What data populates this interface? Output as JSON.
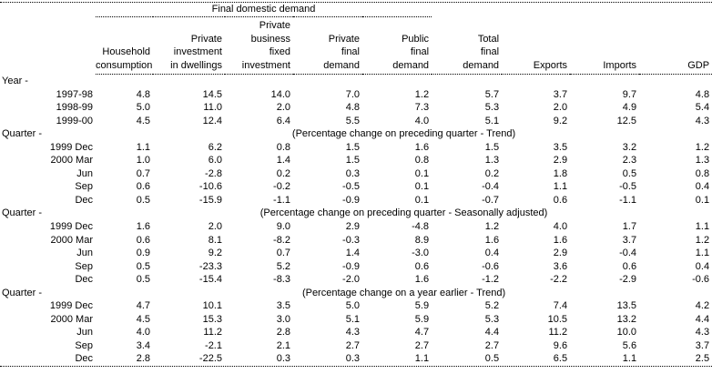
{
  "table": {
    "group_header": "Final domestic demand",
    "column_headers": [
      "Household\nconsumption",
      "Private\ninvestment\nin dwellings",
      "Private\nbusiness\nfixed\ninvestment",
      "Private\nfinal\ndemand",
      "Public\nfinal\ndemand",
      "Total\nfinal\ndemand",
      "Exports",
      "Imports",
      "GDP"
    ],
    "sections": [
      {
        "label": "Year -",
        "subtitle": "",
        "rows": [
          {
            "label": "1997-98",
            "values": [
              "4.8",
              "14.5",
              "14.0",
              "7.0",
              "1.2",
              "5.7",
              "3.7",
              "9.7",
              "4.8"
            ]
          },
          {
            "label": "1998-99",
            "values": [
              "5.0",
              "11.0",
              "2.0",
              "4.8",
              "7.3",
              "5.3",
              "2.0",
              "4.9",
              "5.4"
            ]
          },
          {
            "label": "1999-00",
            "values": [
              "4.5",
              "12.4",
              "6.4",
              "5.5",
              "4.0",
              "5.1",
              "9.2",
              "12.5",
              "4.3"
            ]
          }
        ]
      },
      {
        "label": "Quarter -",
        "subtitle": "(Percentage change on preceding quarter - Trend)",
        "rows": [
          {
            "label": "1999 Dec",
            "values": [
              "1.1",
              "6.2",
              "0.8",
              "1.5",
              "1.6",
              "1.5",
              "3.5",
              "3.2",
              "1.2"
            ]
          },
          {
            "label": "2000 Mar",
            "values": [
              "1.0",
              "6.0",
              "1.4",
              "1.5",
              "0.8",
              "1.3",
              "2.9",
              "2.3",
              "1.3"
            ]
          },
          {
            "label": "Jun",
            "values": [
              "0.7",
              "-2.8",
              "0.2",
              "0.3",
              "0.1",
              "0.2",
              "1.8",
              "0.5",
              "0.8"
            ]
          },
          {
            "label": "Sep",
            "values": [
              "0.6",
              "-10.6",
              "-0.2",
              "-0.5",
              "0.1",
              "-0.4",
              "1.1",
              "-0.5",
              "0.4"
            ]
          },
          {
            "label": "Dec",
            "values": [
              "0.5",
              "-15.9",
              "-1.1",
              "-0.9",
              "0.1",
              "-0.7",
              "0.6",
              "-1.1",
              "0.1"
            ]
          }
        ]
      },
      {
        "label": "Quarter -",
        "subtitle": "(Percentage change on preceding quarter - Seasonally adjusted)",
        "rows": [
          {
            "label": "1999 Dec",
            "values": [
              "1.6",
              "2.0",
              "9.0",
              "2.9",
              "-4.8",
              "1.2",
              "4.0",
              "1.7",
              "1.1"
            ]
          },
          {
            "label": "2000 Mar",
            "values": [
              "0.6",
              "8.1",
              "-8.2",
              "-0.3",
              "8.9",
              "1.6",
              "1.6",
              "3.7",
              "1.2"
            ]
          },
          {
            "label": "Jun",
            "values": [
              "0.9",
              "9.2",
              "0.7",
              "1.4",
              "-3.0",
              "0.4",
              "2.9",
              "-0.4",
              "1.1"
            ]
          },
          {
            "label": "Sep",
            "values": [
              "0.5",
              "-23.3",
              "5.2",
              "-0.9",
              "0.6",
              "-0.6",
              "3.6",
              "0.6",
              "0.4"
            ]
          },
          {
            "label": "Dec",
            "values": [
              "0.5",
              "-15.4",
              "-8.3",
              "-2.0",
              "1.6",
              "-1.2",
              "-2.2",
              "-2.9",
              "-0.6"
            ]
          }
        ]
      },
      {
        "label": "Quarter -",
        "subtitle": "(Percentage change on a year earlier - Trend)",
        "rows": [
          {
            "label": "1999 Dec",
            "values": [
              "4.7",
              "10.1",
              "3.5",
              "5.0",
              "5.9",
              "5.2",
              "7.4",
              "13.5",
              "4.2"
            ]
          },
          {
            "label": "2000 Mar",
            "values": [
              "4.5",
              "15.3",
              "3.0",
              "5.1",
              "5.9",
              "5.3",
              "10.5",
              "13.2",
              "4.4"
            ]
          },
          {
            "label": "Jun",
            "values": [
              "4.0",
              "11.2",
              "2.8",
              "4.3",
              "4.7",
              "4.4",
              "11.2",
              "10.0",
              "4.3"
            ]
          },
          {
            "label": "Sep",
            "values": [
              "3.4",
              "-2.1",
              "2.1",
              "2.7",
              "2.7",
              "2.7",
              "9.6",
              "5.6",
              "3.7"
            ]
          },
          {
            "label": "Dec",
            "values": [
              "2.8",
              "-22.5",
              "0.3",
              "0.3",
              "1.1",
              "0.5",
              "6.5",
              "1.1",
              "2.5"
            ]
          }
        ]
      }
    ]
  }
}
